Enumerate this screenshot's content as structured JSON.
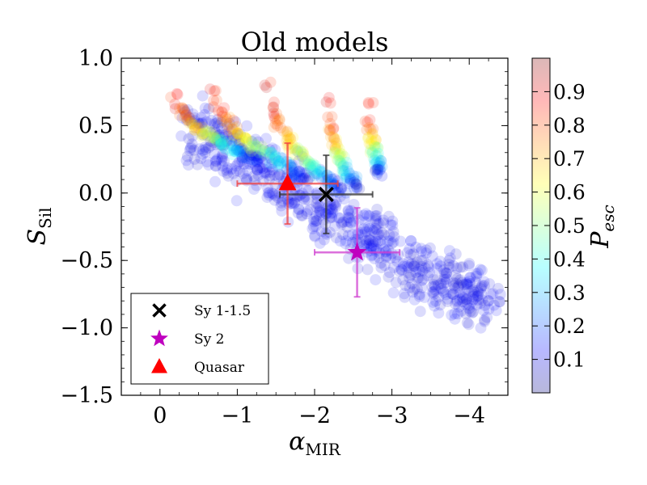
{
  "chart_data": {
    "type": "scatter",
    "title": "Old models",
    "xlabel": {
      "base": "α",
      "sub": "MIR"
    },
    "ylabel": {
      "base": "S",
      "sub": "Sil"
    },
    "xlim": [
      0.5,
      -4.5
    ],
    "ylim": [
      -1.5,
      1.0
    ],
    "x_ticks": [
      0,
      -1,
      -2,
      -3,
      -4
    ],
    "x_tick_labels": [
      "0",
      "−1",
      "−2",
      "−3",
      "−4"
    ],
    "y_ticks": [
      1.0,
      0.5,
      0.0,
      -0.5,
      -1.0,
      -1.5
    ],
    "y_tick_labels": [
      "1.0",
      "0.5",
      "0.0",
      "−0.5",
      "−1.0",
      "−1.5"
    ],
    "colorbar": {
      "label": {
        "base": "P",
        "sub": "esc"
      },
      "range": [
        0.0,
        1.0
      ],
      "ticks": [
        0.1,
        0.2,
        0.3,
        0.4,
        0.5,
        0.6,
        0.7,
        0.8,
        0.9
      ],
      "tick_labels": [
        "0.1",
        "0.2",
        "0.3",
        "0.4",
        "0.5",
        "0.6",
        "0.7",
        "0.8",
        "0.9"
      ],
      "colormap": "jet"
    },
    "model_tracks": [
      {
        "start": [
          -0.2,
          0.73
        ],
        "end": [
          -1.25,
          0.25
        ],
        "p_start": 0.88,
        "count": 30
      },
      {
        "start": [
          -0.7,
          0.78
        ],
        "end": [
          -1.9,
          0.12
        ],
        "p_start": 0.88,
        "count": 32
      },
      {
        "start": [
          -1.4,
          0.8
        ],
        "end": [
          -2.35,
          0.02
        ],
        "p_start": 0.9,
        "count": 30
      },
      {
        "start": [
          -2.15,
          0.68
        ],
        "end": [
          -2.55,
          0.05
        ],
        "p_start": 0.88,
        "count": 22
      },
      {
        "start": [
          -2.7,
          0.67
        ],
        "end": [
          -2.85,
          0.15
        ],
        "p_start": 0.88,
        "count": 18
      }
    ],
    "blue_cloud": {
      "center_line": [
        [
          -0.4,
          0.5
        ],
        [
          -1.0,
          0.25
        ],
        [
          -1.8,
          0.0
        ],
        [
          -2.6,
          -0.3
        ],
        [
          -3.4,
          -0.6
        ],
        [
          -4.3,
          -0.8
        ]
      ],
      "spread_y": 0.18,
      "count": 650,
      "p_value": 0.08
    },
    "points": [
      {
        "name": "Sy 1-1.5",
        "marker": "x",
        "color": "#000000",
        "x": -2.15,
        "y": -0.01,
        "xerr": 0.6,
        "yerr": 0.29
      },
      {
        "name": "Sy 2",
        "marker": "star",
        "color": "#bf00bf",
        "x": -2.55,
        "y": -0.44,
        "xerr": 0.55,
        "yerr": 0.33
      },
      {
        "name": "Quasar",
        "marker": "triangle",
        "color": "#ff0000",
        "x": -1.65,
        "y": 0.07,
        "xerr": 0.65,
        "yerr": 0.3
      }
    ],
    "legend": {
      "placement": "lower-left"
    }
  }
}
